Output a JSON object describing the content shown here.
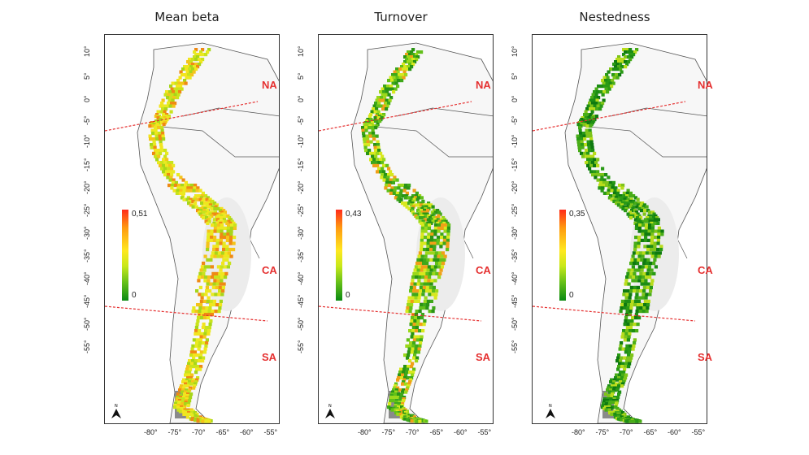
{
  "panels": [
    {
      "title": "Mean beta",
      "legend": {
        "max": "0,51",
        "min": "0"
      },
      "palette": "yellow"
    },
    {
      "title": "Turnover",
      "legend": {
        "max": "0,43",
        "min": "0"
      },
      "palette": "green"
    },
    {
      "title": "Nestedness",
      "legend": {
        "max": "0,35",
        "min": "0"
      },
      "palette": "darkgreen"
    }
  ],
  "regions": {
    "north": "NA",
    "central": "CA",
    "south": "SA"
  },
  "y_ticks": [
    "10°",
    "5°",
    "0°",
    "-5°",
    "-10°",
    "-15°",
    "-20°",
    "-25°",
    "-30°",
    "-35°",
    "-40°",
    "-45°",
    "-50°",
    "-55°"
  ],
  "x_ticks": [
    "-80°",
    "-75°",
    "-70°",
    "-65°",
    "-60°",
    "-55°"
  ],
  "north_arrow": "N",
  "colors": {
    "boundary_line": "#e53030",
    "region_label": "#e53030",
    "country_border": "#555555"
  }
}
